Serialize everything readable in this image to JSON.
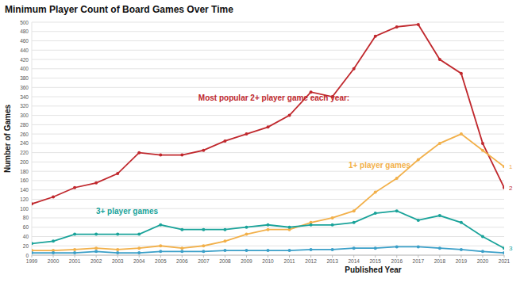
{
  "chart_data": {
    "type": "line",
    "title": "Minimum Player Count of Board Games Over Time",
    "x_label": "Published Year",
    "y_label": "Number of Games",
    "x": [
      1999,
      2000,
      2001,
      2002,
      2003,
      2004,
      2005,
      2006,
      2007,
      2008,
      2009,
      2010,
      2011,
      2012,
      2013,
      2014,
      2015,
      2016,
      2017,
      2018,
      2019,
      2020,
      2021
    ],
    "xlim": [
      1999,
      2021
    ],
    "xticks": [
      1999,
      2000,
      2001,
      2002,
      2003,
      2004,
      2005,
      2006,
      2007,
      2008,
      2009,
      2010,
      2011,
      2012,
      2013,
      2014,
      2015,
      2016,
      2017,
      2018,
      2019,
      2020,
      2021
    ],
    "ylim": [
      0,
      500
    ],
    "yticks": [
      0,
      20,
      40,
      60,
      80,
      100,
      120,
      140,
      160,
      180,
      200,
      220,
      240,
      260,
      280,
      300,
      320,
      340,
      360,
      380,
      400,
      420,
      440,
      460,
      480,
      500
    ],
    "grid": true,
    "series": [
      {
        "name": "Most popular 2+ player game each year:",
        "end_label": "2",
        "color": "#c0282d",
        "marker": "circle",
        "values": [
          110,
          125,
          145,
          155,
          175,
          220,
          215,
          215,
          225,
          245,
          260,
          275,
          300,
          350,
          340,
          400,
          470,
          490,
          495,
          420,
          390,
          240,
          145
        ]
      },
      {
        "name": "1+ player games",
        "end_label": "1",
        "color": "#f2b04a",
        "marker": "circle",
        "values": [
          10,
          10,
          12,
          15,
          12,
          15,
          20,
          15,
          20,
          30,
          45,
          55,
          55,
          70,
          80,
          95,
          135,
          165,
          205,
          240,
          260,
          225,
          190
        ]
      },
      {
        "name": "3+ player games",
        "end_label": "3",
        "color": "#1aa39a",
        "marker": "circle",
        "values": [
          25,
          30,
          45,
          45,
          45,
          45,
          65,
          55,
          55,
          55,
          60,
          65,
          60,
          65,
          65,
          70,
          90,
          95,
          75,
          85,
          70,
          40,
          15
        ]
      },
      {
        "color": "#3a9fc8",
        "marker": "circle",
        "values": [
          5,
          5,
          5,
          8,
          5,
          5,
          8,
          8,
          8,
          10,
          10,
          10,
          10,
          12,
          12,
          15,
          15,
          18,
          18,
          15,
          12,
          8,
          5
        ]
      }
    ]
  }
}
